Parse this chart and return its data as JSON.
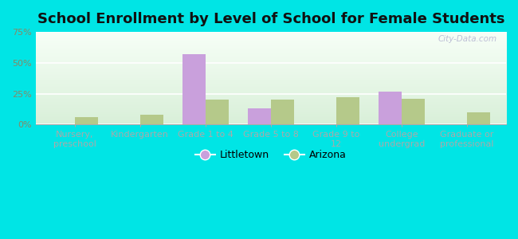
{
  "title": "School Enrollment by Level of School for Female Students",
  "categories": [
    "Nursery,\npreschool",
    "Kindergarten",
    "Grade 1 to 4",
    "Grade 5 to 8",
    "Grade 9 to\n12",
    "College\nundergrad",
    "Graduate or\nprofessional"
  ],
  "littletown_values": [
    0,
    0,
    57,
    13,
    0,
    27,
    0
  ],
  "arizona_values": [
    6,
    8,
    20,
    20,
    22,
    21,
    10
  ],
  "littletown_color": "#c9a0dc",
  "arizona_color": "#b5c98a",
  "ylim": [
    0,
    75
  ],
  "yticks": [
    0,
    25,
    50,
    75
  ],
  "ytick_labels": [
    "0%",
    "25%",
    "50%",
    "75%"
  ],
  "legend_labels": [
    "Littletown",
    "Arizona"
  ],
  "background_color": "#00e5e5",
  "title_fontsize": 13,
  "tick_fontsize": 8,
  "bar_width": 0.35,
  "watermark": "City-Data.com",
  "ytick_color": "#888866",
  "xtick_color": "#555544"
}
